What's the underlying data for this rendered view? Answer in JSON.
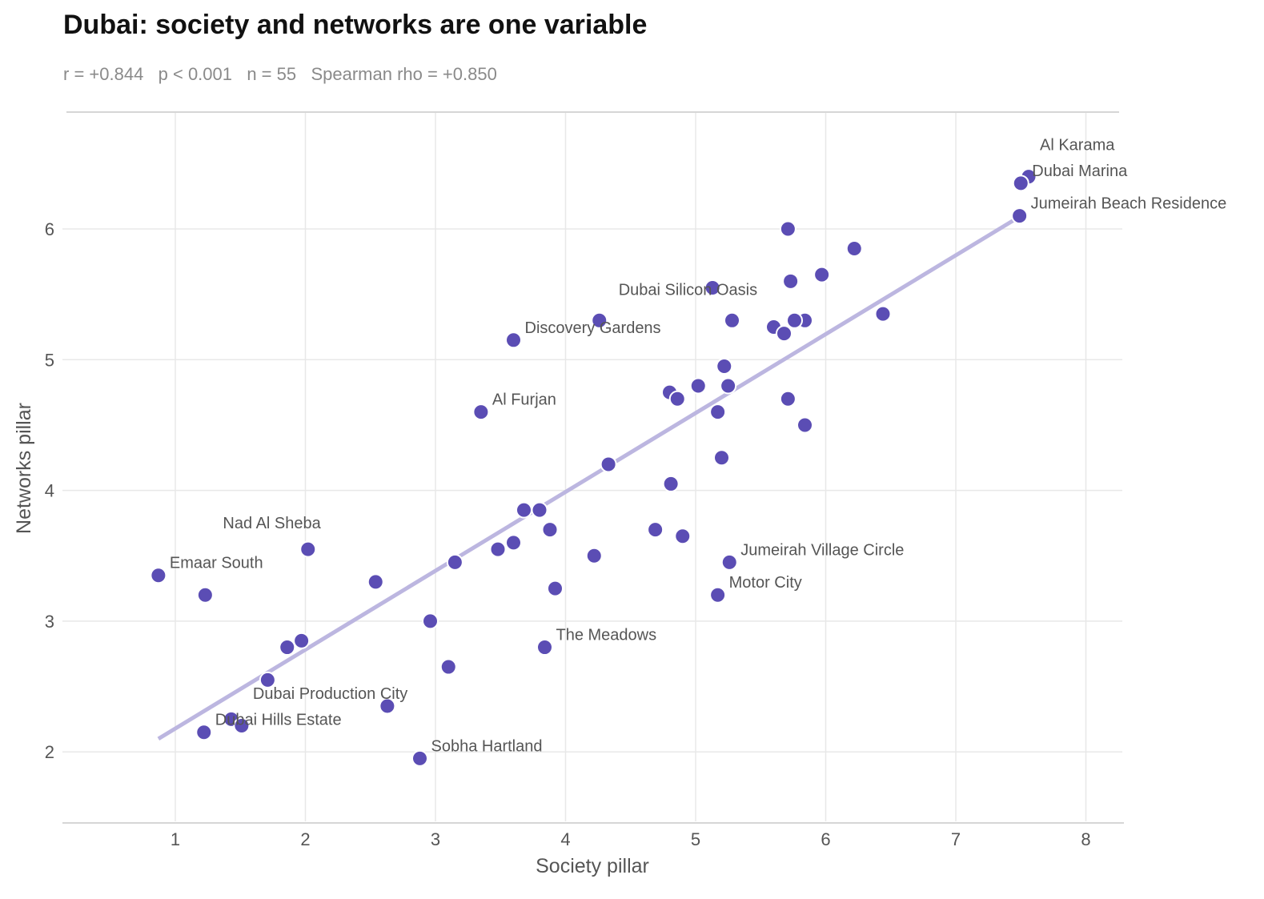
{
  "header": {
    "title": "Dubai: society and networks are one variable",
    "stats": "r = +0.844   p < 0.001   n = 55   Spearman rho = +0.850"
  },
  "chart_data": {
    "type": "scatter",
    "title": "Dubai: society and networks are one variable",
    "xlabel": "Society pillar",
    "ylabel": "Networks pillar",
    "xlim": [
      0.15,
      8.3
    ],
    "ylim": [
      1.45,
      6.9
    ],
    "xticks": [
      1,
      2,
      3,
      4,
      5,
      6,
      7,
      8
    ],
    "yticks": [
      2,
      3,
      4,
      5,
      6
    ],
    "grid": true,
    "point_color": "#5b4db4",
    "trend_color": "#bcb6e0",
    "trendline": {
      "x": [
        0.87,
        7.5
      ],
      "y": [
        2.1,
        6.1
      ]
    },
    "points": [
      {
        "x": 7.56,
        "y": 6.4,
        "label": "Al Karama"
      },
      {
        "x": 7.5,
        "y": 6.35,
        "label": "Dubai Marina"
      },
      {
        "x": 7.49,
        "y": 6.1,
        "label": "Jumeirah Beach Residence"
      },
      {
        "x": 5.71,
        "y": 6.0
      },
      {
        "x": 6.22,
        "y": 5.85
      },
      {
        "x": 5.97,
        "y": 5.65
      },
      {
        "x": 5.73,
        "y": 5.6
      },
      {
        "x": 5.13,
        "y": 5.55,
        "label": "Dubai Silicon Oasis"
      },
      {
        "x": 6.44,
        "y": 5.35
      },
      {
        "x": 4.26,
        "y": 5.3
      },
      {
        "x": 5.28,
        "y": 5.3
      },
      {
        "x": 5.84,
        "y": 5.3
      },
      {
        "x": 5.76,
        "y": 5.3
      },
      {
        "x": 5.6,
        "y": 5.25
      },
      {
        "x": 5.68,
        "y": 5.2
      },
      {
        "x": 3.6,
        "y": 5.15,
        "label": "Discovery Gardens"
      },
      {
        "x": 5.22,
        "y": 4.95
      },
      {
        "x": 5.02,
        "y": 4.8
      },
      {
        "x": 5.25,
        "y": 4.8
      },
      {
        "x": 4.8,
        "y": 4.75
      },
      {
        "x": 4.86,
        "y": 4.7
      },
      {
        "x": 5.71,
        "y": 4.7
      },
      {
        "x": 3.35,
        "y": 4.6,
        "label": "Al Furjan"
      },
      {
        "x": 5.17,
        "y": 4.6
      },
      {
        "x": 5.84,
        "y": 4.5
      },
      {
        "x": 5.2,
        "y": 4.25
      },
      {
        "x": 4.33,
        "y": 4.2
      },
      {
        "x": 4.81,
        "y": 4.05
      },
      {
        "x": 3.68,
        "y": 3.85
      },
      {
        "x": 3.8,
        "y": 3.85
      },
      {
        "x": 3.88,
        "y": 3.7
      },
      {
        "x": 4.69,
        "y": 3.7
      },
      {
        "x": 4.9,
        "y": 3.65
      },
      {
        "x": 3.6,
        "y": 3.6
      },
      {
        "x": 2.02,
        "y": 3.55,
        "label": "Nad Al Sheba"
      },
      {
        "x": 3.48,
        "y": 3.55
      },
      {
        "x": 4.22,
        "y": 3.5
      },
      {
        "x": 3.15,
        "y": 3.45
      },
      {
        "x": 5.26,
        "y": 3.45,
        "label": "Jumeirah Village Circle"
      },
      {
        "x": 0.87,
        "y": 3.35,
        "label": "Emaar South"
      },
      {
        "x": 2.54,
        "y": 3.3
      },
      {
        "x": 3.92,
        "y": 3.25
      },
      {
        "x": 1.23,
        "y": 3.2
      },
      {
        "x": 5.17,
        "y": 3.2,
        "label": "Motor City"
      },
      {
        "x": 2.96,
        "y": 3.0
      },
      {
        "x": 1.97,
        "y": 2.85
      },
      {
        "x": 1.86,
        "y": 2.8
      },
      {
        "x": 3.84,
        "y": 2.8,
        "label": "The Meadows"
      },
      {
        "x": 3.1,
        "y": 2.65
      },
      {
        "x": 1.71,
        "y": 2.55
      },
      {
        "x": 2.63,
        "y": 2.35,
        "label": "Dubai Production City"
      },
      {
        "x": 1.43,
        "y": 2.25
      },
      {
        "x": 1.51,
        "y": 2.2
      },
      {
        "x": 1.22,
        "y": 2.15,
        "label": "Dubai Hills Estate"
      },
      {
        "x": 2.88,
        "y": 1.95,
        "label": "Sobha Hartland"
      }
    ]
  }
}
